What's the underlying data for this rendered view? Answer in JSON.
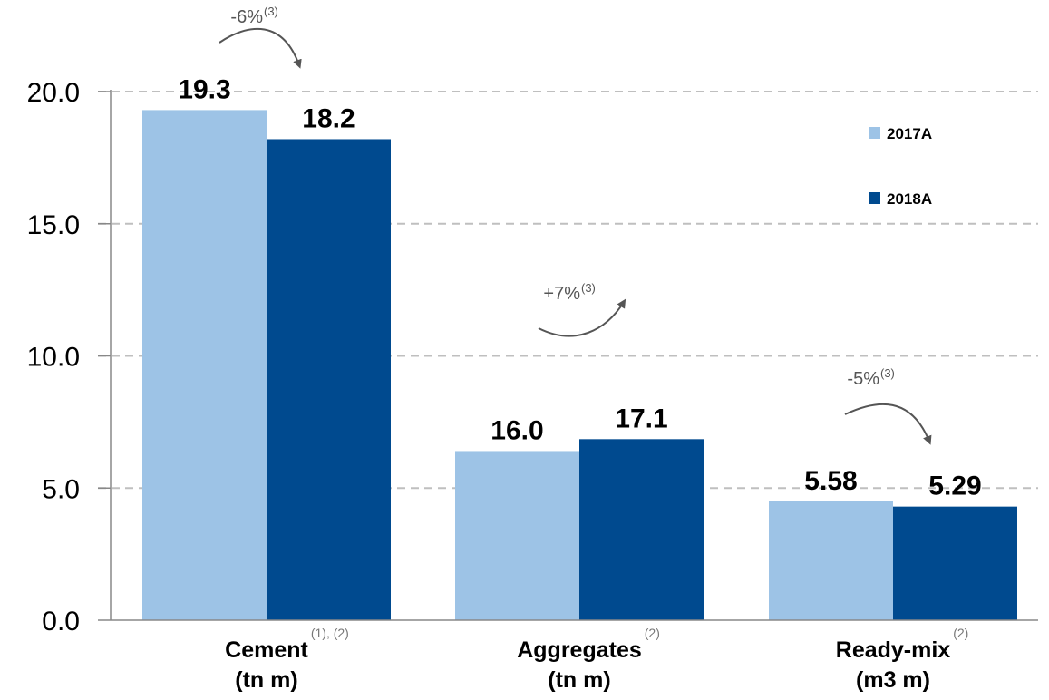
{
  "chart_data": {
    "type": "bar",
    "categories": [
      "Cement",
      "Aggregates",
      "Ready-mix"
    ],
    "category_units": [
      "(tn m)",
      "(tn m)",
      "(m3 m)"
    ],
    "category_notes": [
      "(1), (2)",
      "(2)",
      "(2)"
    ],
    "series": [
      {
        "name": "2017A",
        "values": [
          19.3,
          16.0,
          5.58
        ],
        "labels": [
          "19.3",
          "16.0",
          "5.58"
        ],
        "bar_heights": [
          19.3,
          6.4,
          4.5
        ],
        "color": "#9dc3e6"
      },
      {
        "name": "2018A",
        "values": [
          18.2,
          17.1,
          5.29
        ],
        "labels": [
          "18.2",
          "17.1",
          "5.29"
        ],
        "bar_heights": [
          18.2,
          6.85,
          4.3
        ],
        "color": "#004a8f"
      }
    ],
    "yticks": [
      "0.0",
      "5.0",
      "10.0",
      "15.0",
      "20.0"
    ],
    "ylim": [
      0,
      20
    ],
    "grid": true,
    "legend_position": "top-right",
    "changes": [
      {
        "category": "Cement",
        "label": "-6%",
        "note": "(3)",
        "direction": "down"
      },
      {
        "category": "Aggregates",
        "label": "+7%",
        "note": "(3)",
        "direction": "up"
      },
      {
        "category": "Ready-mix",
        "label": "-5%",
        "note": "(3)",
        "direction": "down"
      }
    ]
  }
}
